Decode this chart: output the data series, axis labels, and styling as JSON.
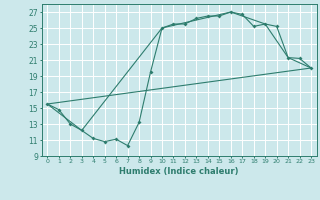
{
  "xlabel": "Humidex (Indice chaleur)",
  "bg_color": "#cce8eb",
  "grid_color": "#ffffff",
  "line_color": "#2e7d6e",
  "xlim": [
    -0.5,
    23.5
  ],
  "ylim": [
    9,
    28
  ],
  "xticks": [
    0,
    1,
    2,
    3,
    4,
    5,
    6,
    7,
    8,
    9,
    10,
    11,
    12,
    13,
    14,
    15,
    16,
    17,
    18,
    19,
    20,
    21,
    22,
    23
  ],
  "yticks": [
    9,
    11,
    13,
    15,
    17,
    19,
    21,
    23,
    25,
    27
  ],
  "line1_x": [
    0,
    1,
    2,
    3,
    4,
    5,
    6,
    7,
    8,
    9,
    10,
    11,
    12,
    13,
    14,
    15,
    16,
    17,
    18,
    19,
    20,
    21,
    22,
    23
  ],
  "line1_y": [
    15.5,
    14.8,
    13.0,
    12.2,
    11.2,
    10.8,
    11.1,
    10.3,
    13.2,
    19.5,
    25.0,
    25.5,
    25.5,
    26.2,
    26.5,
    26.5,
    27.0,
    26.7,
    25.2,
    25.5,
    25.2,
    21.3,
    21.2,
    20.0
  ],
  "line2_x": [
    0,
    3,
    10,
    16,
    19,
    21,
    23
  ],
  "line2_y": [
    15.5,
    12.2,
    25.0,
    27.0,
    25.5,
    21.3,
    20.0
  ],
  "line3_x": [
    0,
    23
  ],
  "line3_y": [
    15.5,
    20.0
  ]
}
